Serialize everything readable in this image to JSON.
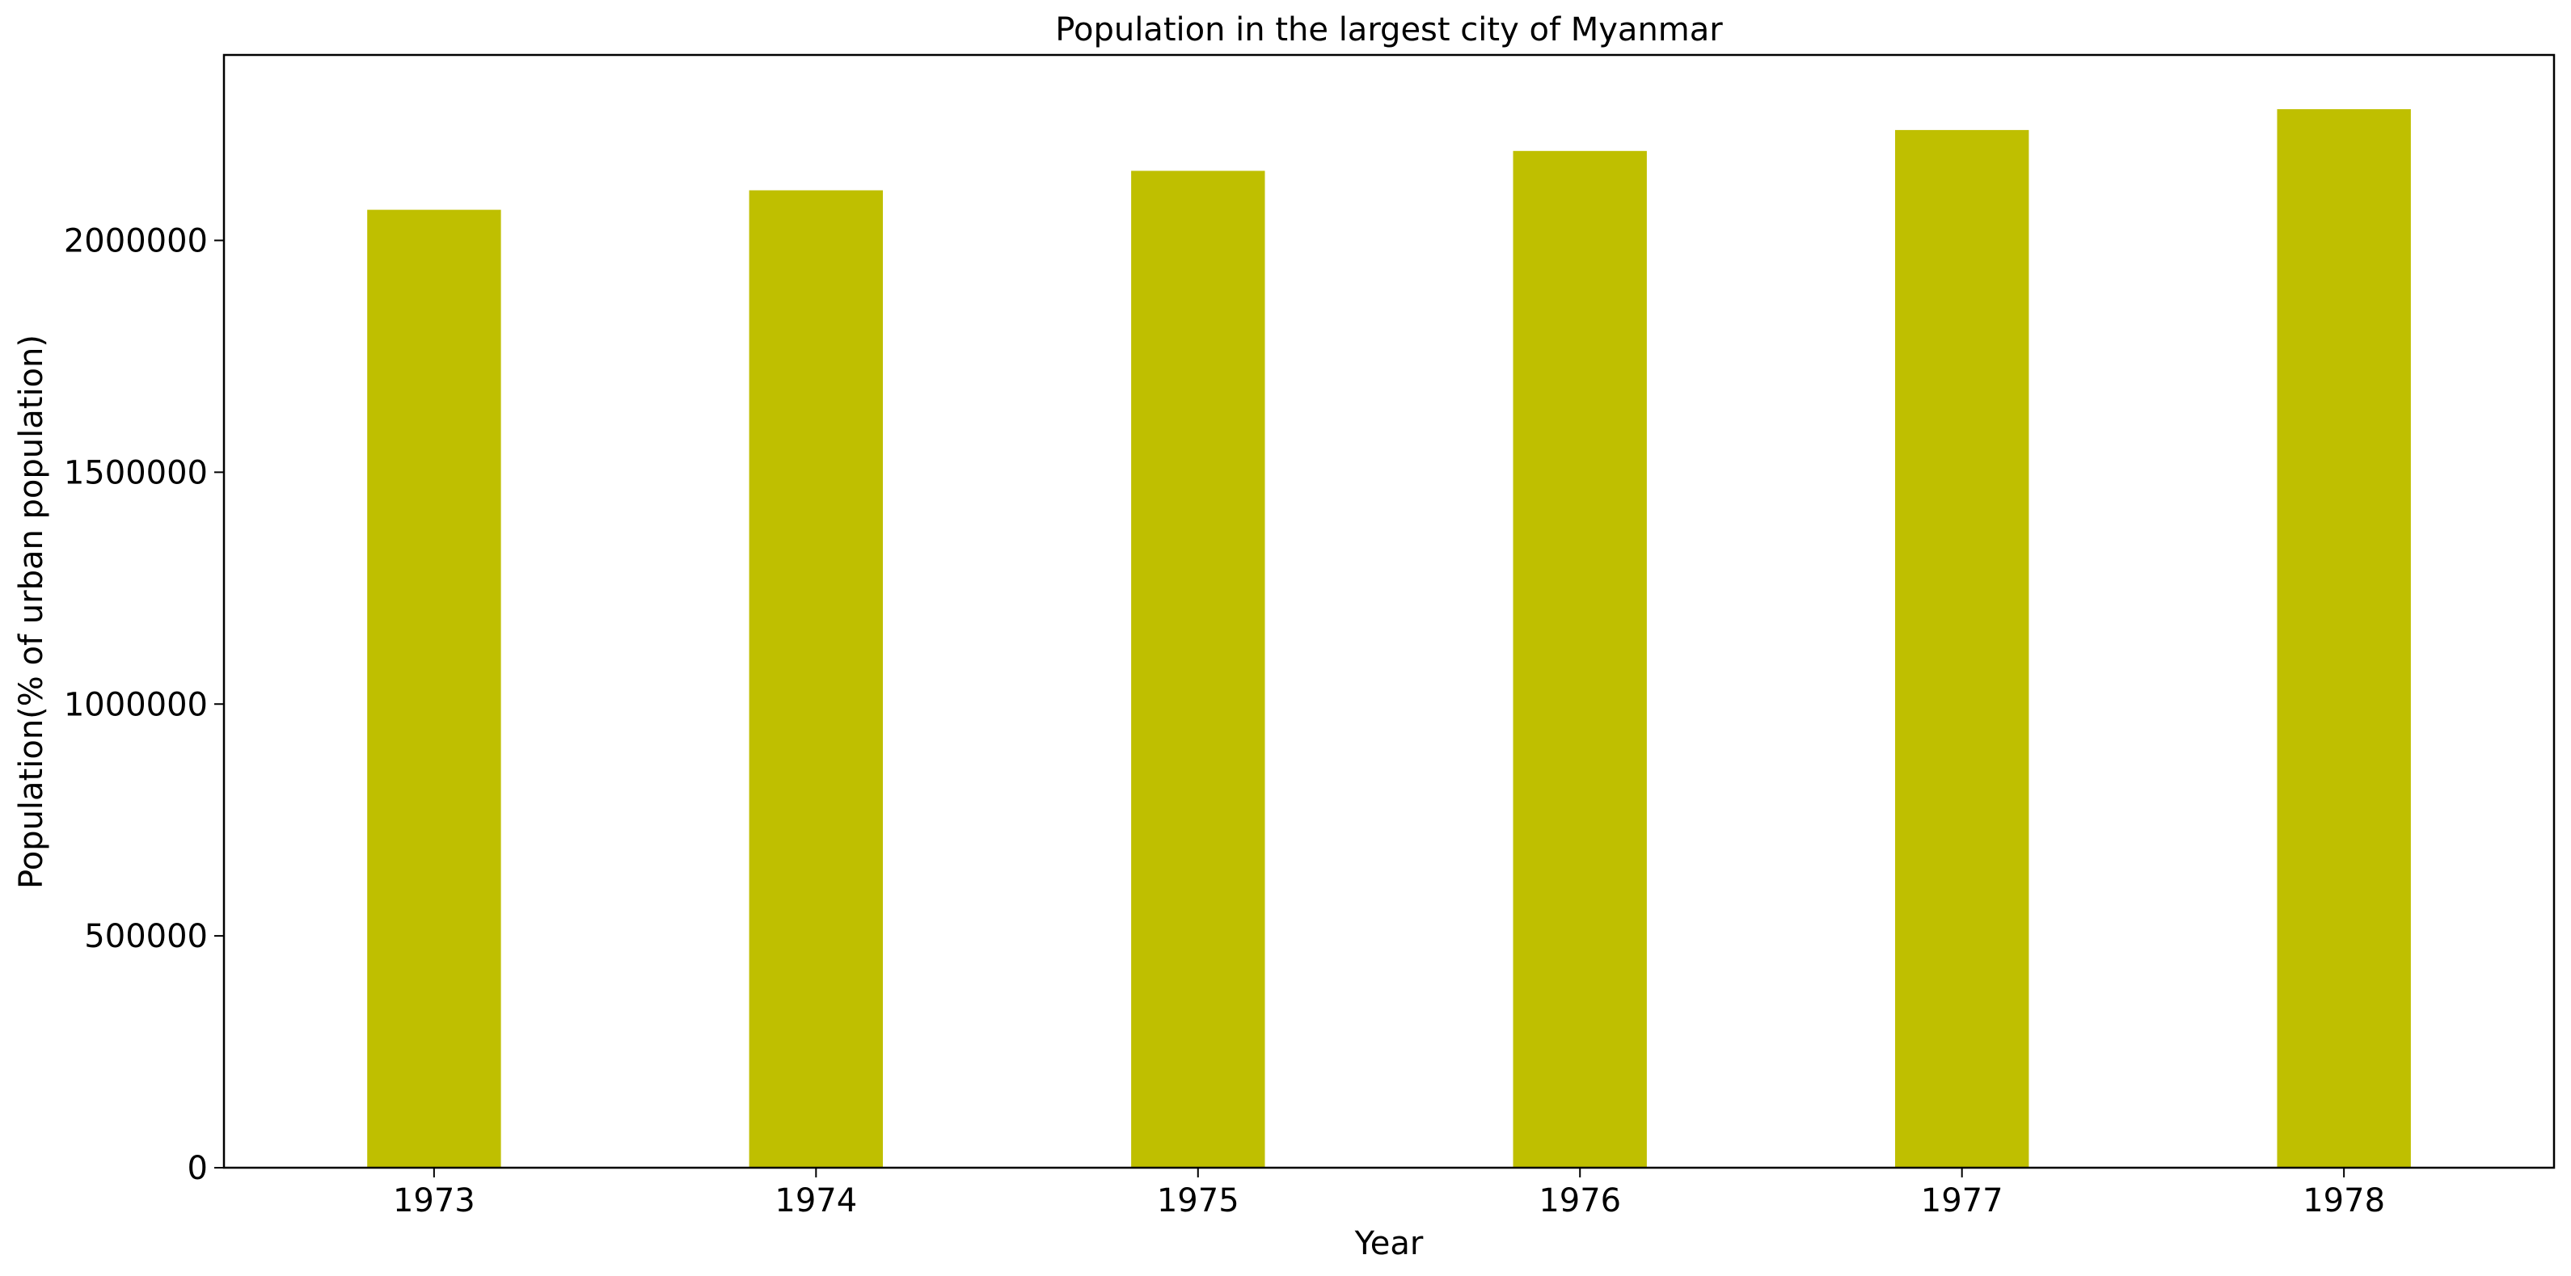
{
  "chart_data": {
    "type": "bar",
    "title": "Population in the largest city of Myanmar",
    "xlabel": "Year",
    "ylabel": "Population(% of urban population)",
    "categories": [
      "1973",
      "1974",
      "1975",
      "1976",
      "1977",
      "1978"
    ],
    "values": [
      2066000,
      2108000,
      2150000,
      2193000,
      2238000,
      2283000
    ],
    "ylim": [
      0,
      2400000
    ],
    "yticks": [
      0,
      500000,
      1000000,
      1500000,
      2000000
    ],
    "ytick_labels": [
      "0",
      "500000",
      "1000000",
      "1500000",
      "2000000"
    ],
    "bar_color": "#bfbf00",
    "grid": false,
    "legend": "none"
  }
}
